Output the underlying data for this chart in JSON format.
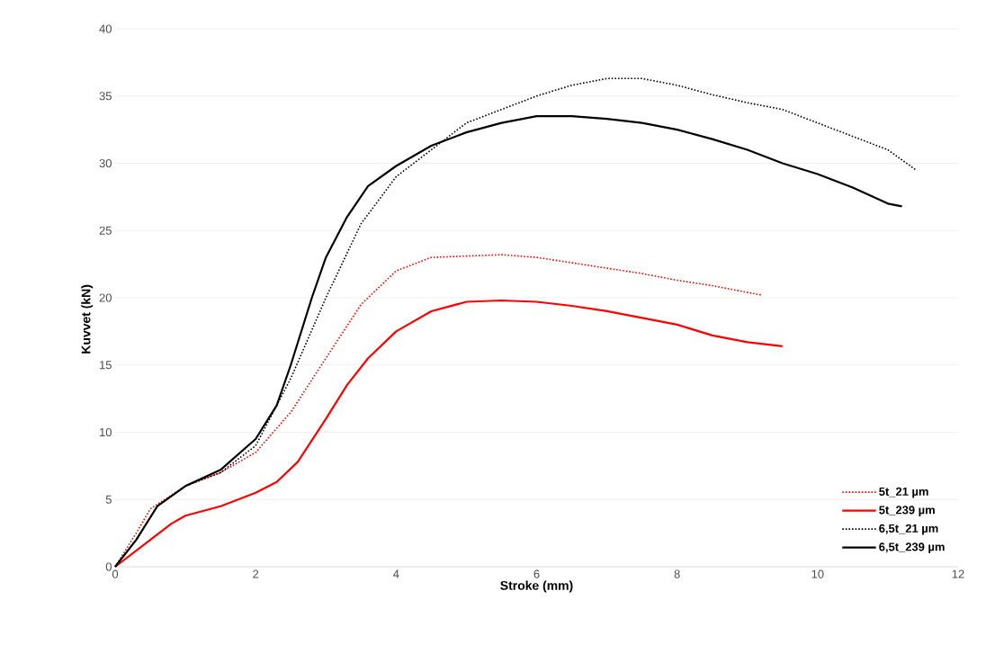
{
  "chart_data": {
    "type": "line",
    "xlabel": "Stroke (mm)",
    "ylabel": "Kuvvet (kN)",
    "xlim": [
      0,
      12
    ],
    "ylim": [
      0,
      40
    ],
    "xticks": [
      0,
      2,
      4,
      6,
      8,
      10,
      12
    ],
    "yticks": [
      0,
      5,
      10,
      15,
      20,
      25,
      30,
      35,
      40
    ],
    "grid": "y",
    "legend": "bottom right",
    "marker": "none",
    "series": [
      {
        "name": "5t_21 µm",
        "color": "#ff0000",
        "line_style": "dotted",
        "x": [
          0,
          0.3,
          0.5,
          1,
          1.5,
          2,
          2.5,
          3,
          3.5,
          4,
          4.5,
          5,
          5.5,
          6,
          6.5,
          7,
          7.5,
          8,
          8.5,
          9.2
        ],
        "values": [
          0,
          2.5,
          4.3,
          6,
          7,
          8.5,
          11.5,
          15.5,
          19.5,
          22,
          23,
          23.1,
          23.2,
          23,
          22.6,
          22.2,
          21.8,
          21.3,
          20.9,
          20.2
        ]
      },
      {
        "name": "5t_239 µm",
        "color": "#ff0000",
        "line_style": "solid",
        "x": [
          0,
          0.25,
          0.5,
          0.8,
          1,
          1.5,
          2,
          2.3,
          2.6,
          3,
          3.3,
          3.6,
          4,
          4.5,
          5,
          5.5,
          6,
          6.5,
          7,
          7.5,
          8,
          8.5,
          9,
          9.5
        ],
        "values": [
          0,
          1,
          2,
          3.2,
          3.8,
          4.5,
          5.5,
          6.3,
          7.8,
          11,
          13.5,
          15.5,
          17.5,
          19,
          19.7,
          19.8,
          19.7,
          19.4,
          19,
          18.5,
          18,
          17.2,
          16.7,
          16.4
        ]
      },
      {
        "name": "6,5t_21 µm",
        "color": "#000000",
        "line_style": "dotted",
        "x": [
          0,
          0.3,
          0.6,
          1,
          1.5,
          2,
          2.5,
          3,
          3.5,
          4,
          4.5,
          5,
          5.5,
          6,
          6.5,
          7,
          7.5,
          8,
          8.5,
          9,
          9.5,
          10,
          10.5,
          11,
          11.4
        ],
        "values": [
          0,
          2,
          4.5,
          6,
          7,
          9,
          14,
          20,
          25.5,
          29,
          31,
          33,
          34,
          35,
          35.8,
          36.3,
          36.3,
          35.8,
          35.1,
          34.5,
          34,
          33,
          32,
          31,
          29.5
        ]
      },
      {
        "name": "6,5t_239 µm",
        "color": "#000000",
        "line_style": "solid",
        "x": [
          0,
          0.3,
          0.6,
          1,
          1.5,
          2,
          2.3,
          2.5,
          2.8,
          3,
          3.3,
          3.6,
          4,
          4.5,
          5,
          5.5,
          6,
          6.5,
          7,
          7.5,
          8,
          8.5,
          9,
          9.5,
          10,
          10.5,
          11,
          11.2
        ],
        "values": [
          0,
          2,
          4.5,
          6,
          7.2,
          9.5,
          12,
          15,
          20,
          23,
          26,
          28.3,
          29.8,
          31.3,
          32.3,
          33,
          33.5,
          33.5,
          33.3,
          33,
          32.5,
          31.8,
          31,
          30,
          29.2,
          28.2,
          27,
          26.8
        ]
      }
    ]
  }
}
